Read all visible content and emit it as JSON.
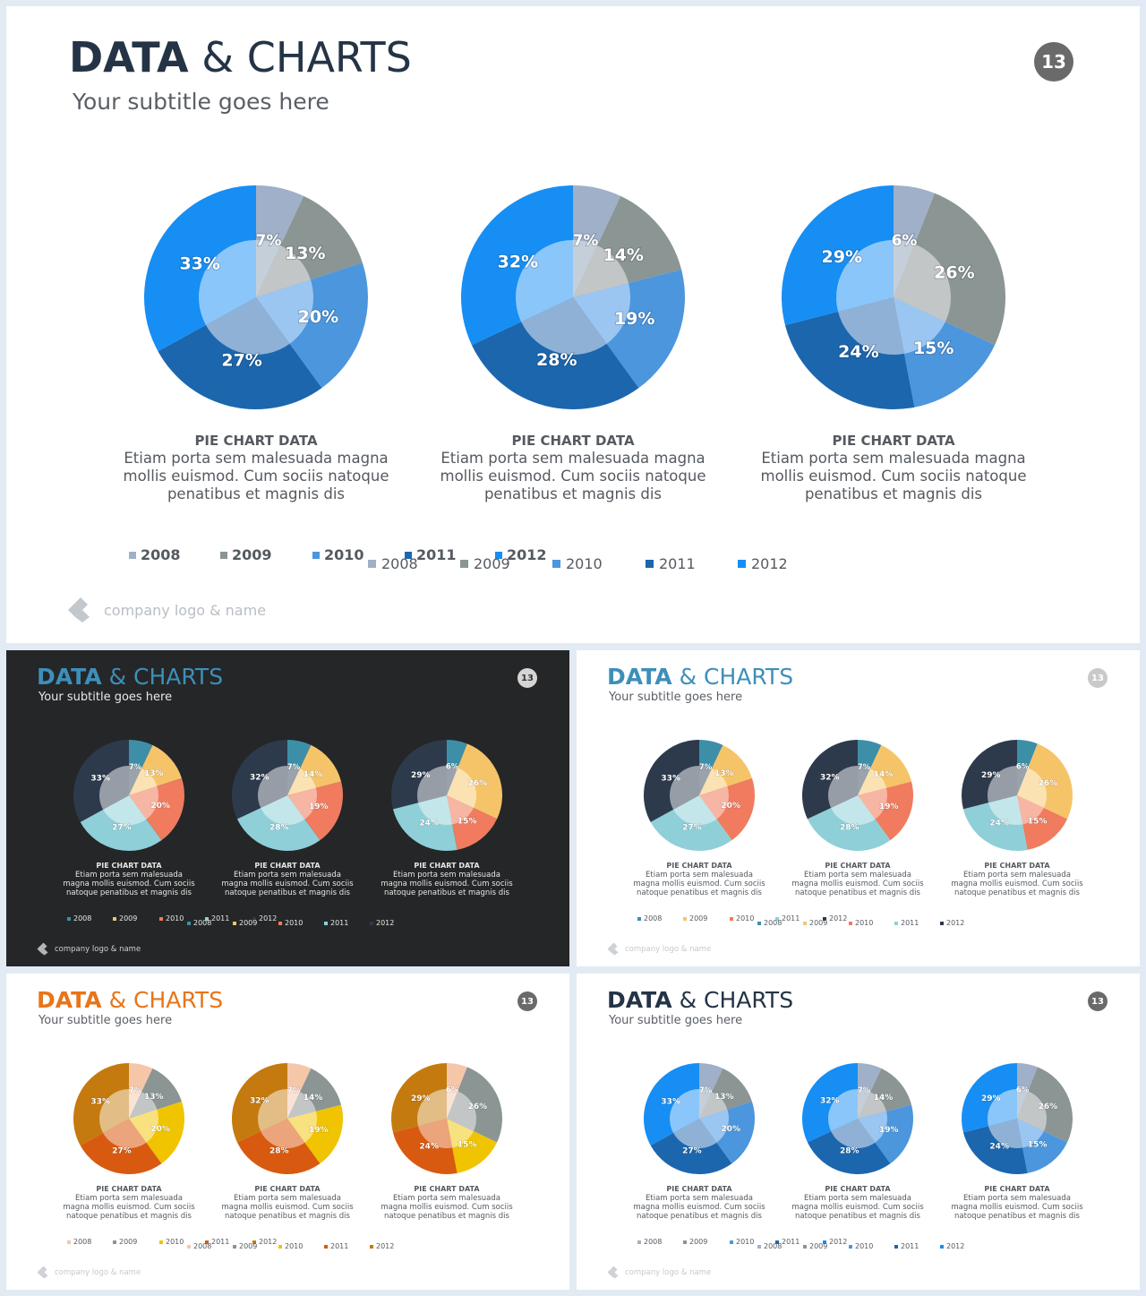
{
  "slides": [
    {
      "key": "main",
      "title_bold": "DATA",
      "title_light": "& CHARTS",
      "subtitle": "Your subtitle goes here",
      "page": "13",
      "footer": "company logo & name",
      "colors": {
        "background": "#ffffff",
        "title": "#243446",
        "subtitle": "#5a5f66",
        "badge": "#6a6a6a",
        "text": "#555a60",
        "footer": "#b9bec4",
        "outer": [
          "#9fb0c8",
          "#8a9594",
          "#4c96de",
          "#1c66ae",
          "#168ef4"
        ],
        "inner": [
          "#c5cfd9",
          "#c3c6c7",
          "#9bc6f1",
          "#8fb1d6",
          "#8bc6fb"
        ]
      },
      "pies": [
        {
          "caption_title": "PIE CHART DATA",
          "caption_text": "Etiam porta sem malesuada magna mollis euismod. Cum sociis natoque penatibus et magnis dis",
          "slices": [
            {
              "label": "2008",
              "value": 7,
              "text": "7%"
            },
            {
              "label": "2009",
              "value": 13,
              "text": "13%"
            },
            {
              "label": "2010",
              "value": 20,
              "text": "20%"
            },
            {
              "label": "2011",
              "value": 27,
              "text": "27%"
            },
            {
              "label": "2012",
              "value": 33,
              "text": "33%"
            }
          ]
        },
        {
          "caption_title": "PIE CHART DATA",
          "caption_text": "Etiam porta sem malesuada magna mollis euismod. Cum sociis natoque penatibus et magnis dis",
          "slices": [
            {
              "label": "2008",
              "value": 7,
              "text": "7%"
            },
            {
              "label": "2009",
              "value": 14,
              "text": "14%"
            },
            {
              "label": "2010",
              "value": 19,
              "text": "19%"
            },
            {
              "label": "2011",
              "value": 28,
              "text": "28%"
            },
            {
              "label": "2012",
              "value": 32,
              "text": "32%"
            }
          ]
        },
        {
          "caption_title": "PIE CHART DATA",
          "caption_text": "Etiam porta sem malesuada magna mollis euismod. Cum sociis natoque penatibus et magnis dis",
          "slices": [
            {
              "label": "2008",
              "value": 6,
              "text": "6%"
            },
            {
              "label": "2009",
              "value": 26,
              "text": "26%"
            },
            {
              "label": "2010",
              "value": 15,
              "text": "15%"
            },
            {
              "label": "2011",
              "value": 24,
              "text": "24%"
            },
            {
              "label": "2012",
              "value": 29,
              "text": "29%"
            }
          ]
        }
      ],
      "legend_a": [
        "2008",
        "2009",
        "2010",
        "2011",
        "2012"
      ],
      "legend_b": [
        "2008",
        "2009",
        "2010",
        "2011",
        "2012"
      ]
    },
    {
      "key": "dark",
      "title_bold": "DATA",
      "title_light": "& CHARTS",
      "subtitle": "Your subtitle goes here",
      "page": "13",
      "footer": "company logo & name",
      "colors": {
        "background": "#252627",
        "title": "#3d8fba",
        "subtitle": "#e8e8e8",
        "badge": "#d5d5d5",
        "badge_text": "#333333",
        "text": "#e6e6e6",
        "footer": "#d0d0d0",
        "outer": [
          "#3d8fa8",
          "#f5c469",
          "#f07b5e",
          "#8ecfd8",
          "#2d3a4c"
        ],
        "inner": [
          "#9aa2ac",
          "#fbe2b3",
          "#f7b5a4",
          "#c3e6ea",
          "#979da7"
        ]
      },
      "pies": [
        {
          "caption_title": "PIE CHART DATA",
          "caption_text": "Etiam porta sem malesuada magna mollis euismod. Cum sociis natoque penatibus et magnis dis",
          "slices": [
            {
              "label": "2008",
              "value": 7,
              "text": "7%"
            },
            {
              "label": "2009",
              "value": 13,
              "text": "13%"
            },
            {
              "label": "2010",
              "value": 20,
              "text": "20%"
            },
            {
              "label": "2011",
              "value": 27,
              "text": "27%"
            },
            {
              "label": "2012",
              "value": 33,
              "text": "33%"
            }
          ]
        },
        {
          "caption_title": "PIE CHART DATA",
          "caption_text": "Etiam porta sem malesuada magna mollis euismod. Cum sociis natoque penatibus et magnis dis",
          "slices": [
            {
              "label": "2008",
              "value": 7,
              "text": "7%"
            },
            {
              "label": "2009",
              "value": 14,
              "text": "14%"
            },
            {
              "label": "2010",
              "value": 19,
              "text": "19%"
            },
            {
              "label": "2011",
              "value": 28,
              "text": "28%"
            },
            {
              "label": "2012",
              "value": 32,
              "text": "32%"
            }
          ]
        },
        {
          "caption_title": "PIE CHART DATA",
          "caption_text": "Etiam porta sem malesuada magna mollis euismod. Cum sociis natoque penatibus et magnis dis",
          "slices": [
            {
              "label": "2008",
              "value": 6,
              "text": "6%"
            },
            {
              "label": "2009",
              "value": 26,
              "text": "26%"
            },
            {
              "label": "2010",
              "value": 15,
              "text": "15%"
            },
            {
              "label": "2011",
              "value": 24,
              "text": "24%"
            },
            {
              "label": "2012",
              "value": 29,
              "text": "29%"
            }
          ]
        }
      ],
      "legend_a": [
        "2008",
        "2009",
        "2010",
        "2011",
        "2012"
      ],
      "legend_b": [
        "2008",
        "2009",
        "2010",
        "2011",
        "2012"
      ]
    },
    {
      "key": "light-teal",
      "title_bold": "DATA",
      "title_light": "& CHARTS",
      "subtitle": "Your subtitle goes here",
      "page": "13",
      "footer": "company logo & name",
      "colors": {
        "background": "#ffffff",
        "title": "#3d8fba",
        "subtitle": "#5a5f66",
        "badge": "#c9c9c9",
        "badge_text": "#ffffff",
        "text": "#555a60",
        "footer": "#c5c9ce",
        "outer": [
          "#3d8fa8",
          "#f5c469",
          "#f07b5e",
          "#8ecfd8",
          "#2d3a4c"
        ],
        "inner": [
          "#9aa2ac",
          "#fbe2b3",
          "#f7b5a4",
          "#c3e6ea",
          "#979da7"
        ]
      },
      "pies": [
        {
          "caption_title": "PIE CHART DATA",
          "caption_text": "Etiam porta sem malesuada magna mollis euismod. Cum sociis natoque penatibus et magnis dis",
          "slices": [
            {
              "label": "2008",
              "value": 7,
              "text": "7%"
            },
            {
              "label": "2009",
              "value": 13,
              "text": "13%"
            },
            {
              "label": "2010",
              "value": 20,
              "text": "20%"
            },
            {
              "label": "2011",
              "value": 27,
              "text": "27%"
            },
            {
              "label": "2012",
              "value": 33,
              "text": "33%"
            }
          ]
        },
        {
          "caption_title": "PIE CHART DATA",
          "caption_text": "Etiam porta sem malesuada magna mollis euismod. Cum sociis natoque penatibus et magnis dis",
          "slices": [
            {
              "label": "2008",
              "value": 7,
              "text": "7%"
            },
            {
              "label": "2009",
              "value": 14,
              "text": "14%"
            },
            {
              "label": "2010",
              "value": 19,
              "text": "19%"
            },
            {
              "label": "2011",
              "value": 28,
              "text": "28%"
            },
            {
              "label": "2012",
              "value": 32,
              "text": "32%"
            }
          ]
        },
        {
          "caption_title": "PIE CHART DATA",
          "caption_text": "Etiam porta sem malesuada magna mollis euismod. Cum sociis natoque penatibus et magnis dis",
          "slices": [
            {
              "label": "2008",
              "value": 6,
              "text": "6%"
            },
            {
              "label": "2009",
              "value": 26,
              "text": "26%"
            },
            {
              "label": "2010",
              "value": 15,
              "text": "15%"
            },
            {
              "label": "2011",
              "value": 24,
              "text": "24%"
            },
            {
              "label": "2012",
              "value": 29,
              "text": "29%"
            }
          ]
        }
      ],
      "legend_a": [
        "2008",
        "2009",
        "2010",
        "2011",
        "2012"
      ],
      "legend_b": [
        "2008",
        "2009",
        "2010",
        "2011",
        "2012"
      ]
    },
    {
      "key": "orange",
      "title_bold": "DATA",
      "title_light": "& CHARTS",
      "subtitle": "Your subtitle goes here",
      "page": "13",
      "footer": "company logo & name",
      "colors": {
        "background": "#ffffff",
        "title": "#e8751a",
        "subtitle": "#5a5f66",
        "badge": "#6a6a6a",
        "badge_text": "#ffffff",
        "text": "#555a60",
        "footer": "#c5c9ce",
        "outer": [
          "#f6c6a9",
          "#8a9594",
          "#f0c400",
          "#d85a10",
          "#c47a0e"
        ],
        "inner": [
          "#fbe3d4",
          "#c3c6c7",
          "#f8e17f",
          "#eca47c",
          "#e2bd86"
        ]
      },
      "pies": [
        {
          "caption_title": "PIE CHART DATA",
          "caption_text": "Etiam porta sem malesuada magna mollis euismod. Cum sociis natoque penatibus et magnis dis",
          "slices": [
            {
              "label": "2008",
              "value": 7,
              "text": "7%"
            },
            {
              "label": "2009",
              "value": 13,
              "text": "13%"
            },
            {
              "label": "2010",
              "value": 20,
              "text": "20%"
            },
            {
              "label": "2011",
              "value": 27,
              "text": "27%"
            },
            {
              "label": "2012",
              "value": 33,
              "text": "33%"
            }
          ]
        },
        {
          "caption_title": "PIE CHART DATA",
          "caption_text": "Etiam porta sem malesuada magna mollis euismod. Cum sociis natoque penatibus et magnis dis",
          "slices": [
            {
              "label": "2008",
              "value": 7,
              "text": "7%"
            },
            {
              "label": "2009",
              "value": 14,
              "text": "14%"
            },
            {
              "label": "2010",
              "value": 19,
              "text": "19%"
            },
            {
              "label": "2011",
              "value": 28,
              "text": "28%"
            },
            {
              "label": "2012",
              "value": 32,
              "text": "32%"
            }
          ]
        },
        {
          "caption_title": "PIE CHART DATA",
          "caption_text": "Etiam porta sem malesuada magna mollis euismod. Cum sociis natoque penatibus et magnis dis",
          "slices": [
            {
              "label": "2008",
              "value": 6,
              "text": "6%"
            },
            {
              "label": "2009",
              "value": 26,
              "text": "26%"
            },
            {
              "label": "2010",
              "value": 15,
              "text": "15%"
            },
            {
              "label": "2011",
              "value": 24,
              "text": "24%"
            },
            {
              "label": "2012",
              "value": 29,
              "text": "29%"
            }
          ]
        }
      ],
      "legend_a": [
        "2008",
        "2009",
        "2010",
        "2011",
        "2012"
      ],
      "legend_b": [
        "2008",
        "2009",
        "2010",
        "2011",
        "2012"
      ]
    },
    {
      "key": "blue-small",
      "title_bold": "DATA",
      "title_light": "& CHARTS",
      "subtitle": "Your subtitle goes here",
      "page": "13",
      "footer": "company logo & name",
      "colors": {
        "background": "#ffffff",
        "title": "#243446",
        "subtitle": "#5a5f66",
        "badge": "#6a6a6a",
        "badge_text": "#ffffff",
        "text": "#555a60",
        "footer": "#c5c9ce",
        "outer": [
          "#9fb0c8",
          "#8a9594",
          "#4c96de",
          "#1c66ae",
          "#168ef4"
        ],
        "inner": [
          "#c5cfd9",
          "#c3c6c7",
          "#9bc6f1",
          "#8fb1d6",
          "#8bc6fb"
        ]
      },
      "pies": [
        {
          "caption_title": "PIE CHART DATA",
          "caption_text": "Etiam porta sem malesuada magna mollis euismod. Cum sociis natoque penatibus et magnis dis",
          "slices": [
            {
              "label": "2008",
              "value": 7,
              "text": "7%"
            },
            {
              "label": "2009",
              "value": 13,
              "text": "13%"
            },
            {
              "label": "2010",
              "value": 20,
              "text": "20%"
            },
            {
              "label": "2011",
              "value": 27,
              "text": "27%"
            },
            {
              "label": "2012",
              "value": 33,
              "text": "33%"
            }
          ]
        },
        {
          "caption_title": "PIE CHART DATA",
          "caption_text": "Etiam porta sem malesuada magna mollis euismod. Cum sociis natoque penatibus et magnis dis",
          "slices": [
            {
              "label": "2008",
              "value": 7,
              "text": "7%"
            },
            {
              "label": "2009",
              "value": 14,
              "text": "14%"
            },
            {
              "label": "2010",
              "value": 19,
              "text": "19%"
            },
            {
              "label": "2011",
              "value": 28,
              "text": "28%"
            },
            {
              "label": "2012",
              "value": 32,
              "text": "32%"
            }
          ]
        },
        {
          "caption_title": "PIE CHART DATA",
          "caption_text": "Etiam porta sem malesuada magna mollis euismod. Cum sociis natoque penatibus et magnis dis",
          "slices": [
            {
              "label": "2008",
              "value": 6,
              "text": "6%"
            },
            {
              "label": "2009",
              "value": 26,
              "text": "26%"
            },
            {
              "label": "2010",
              "value": 15,
              "text": "15%"
            },
            {
              "label": "2011",
              "value": 24,
              "text": "24%"
            },
            {
              "label": "2012",
              "value": 29,
              "text": "29%"
            }
          ]
        }
      ],
      "legend_a": [
        "2008",
        "2009",
        "2010",
        "2011",
        "2012"
      ],
      "legend_b": [
        "2008",
        "2009",
        "2010",
        "2011",
        "2012"
      ]
    }
  ]
}
